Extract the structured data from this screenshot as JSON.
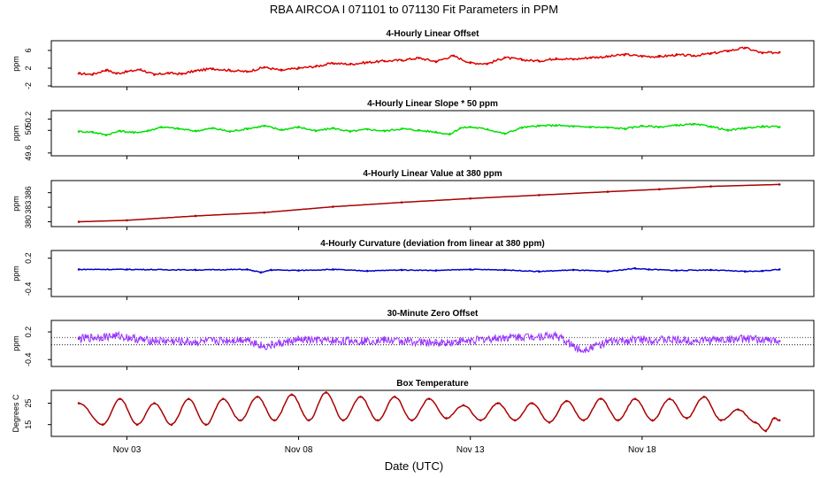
{
  "title": "RBA   AIRCOA I   071101 to 071130   Fit Parameters in PPM",
  "x_axis": {
    "label": "Date (UTC)",
    "range_days": [
      0.8,
      23.0
    ],
    "ticks": [
      {
        "day": 3,
        "label": "Nov 03"
      },
      {
        "day": 8,
        "label": "Nov 08"
      },
      {
        "day": 13,
        "label": "Nov 13"
      },
      {
        "day": 18,
        "label": "Nov 18"
      }
    ]
  },
  "chart_data": [
    {
      "type": "line",
      "title": "4-Hourly Linear Offset",
      "ylabel": "ppm",
      "ylim": [
        -2.2,
        8.2
      ],
      "yticks": [
        -2,
        2,
        6
      ],
      "ytick_labels": [
        "-2",
        "2",
        "6"
      ],
      "color": "#e00000",
      "x": [
        1.6,
        2.0,
        2.4,
        2.7,
        3.0,
        3.4,
        3.8,
        4.2,
        4.6,
        5.0,
        5.5,
        6.0,
        6.5,
        7.0,
        7.5,
        8.0,
        8.5,
        9.0,
        9.5,
        10.0,
        10.5,
        11.0,
        11.5,
        12.0,
        12.5,
        13.0,
        13.5,
        14.0,
        14.5,
        15.0,
        15.5,
        16.0,
        16.5,
        17.0,
        17.5,
        18.0,
        18.5,
        19.0,
        19.5,
        20.0,
        20.5,
        21.0,
        21.5,
        22.0
      ],
      "values": [
        0.8,
        0.6,
        1.6,
        0.8,
        1.2,
        1.7,
        0.5,
        0.9,
        0.7,
        1.4,
        1.9,
        1.5,
        1.2,
        2.2,
        1.5,
        2.0,
        2.4,
        3.1,
        2.9,
        3.3,
        3.6,
        3.8,
        4.3,
        3.5,
        4.8,
        3.2,
        3.0,
        4.4,
        3.9,
        3.6,
        4.2,
        4.0,
        4.4,
        4.6,
        5.1,
        4.7,
        4.6,
        5.0,
        4.8,
        5.3,
        5.9,
        6.6,
        5.4,
        5.6
      ]
    },
    {
      "type": "line",
      "title": "4-Hourly Linear Slope * 50 ppm",
      "ylabel": "ppm",
      "ylim": [
        49.55,
        50.35
      ],
      "yticks": [
        49.6,
        50.0,
        50.2
      ],
      "ytick_labels": [
        "49.6",
        "50",
        "50.2"
      ],
      "color": "#00e000",
      "x": [
        1.6,
        2.0,
        2.4,
        2.8,
        3.2,
        3.6,
        4.0,
        4.5,
        5.0,
        5.5,
        6.0,
        6.5,
        7.0,
        7.5,
        8.0,
        8.5,
        9.0,
        9.5,
        10.0,
        10.5,
        11.0,
        11.5,
        12.0,
        12.4,
        12.7,
        13.0,
        13.5,
        14.0,
        14.5,
        15.0,
        15.5,
        16.0,
        16.5,
        17.0,
        17.5,
        18.0,
        18.5,
        19.0,
        19.5,
        20.0,
        20.5,
        21.0,
        21.5,
        22.0
      ],
      "values": [
        49.98,
        49.97,
        49.92,
        49.99,
        49.96,
        49.99,
        50.06,
        50.03,
        49.99,
        50.04,
        49.98,
        50.03,
        50.08,
        50.01,
        50.06,
        49.99,
        50.04,
        49.98,
        50.02,
        49.99,
        50.03,
        50.0,
        49.97,
        49.93,
        50.04,
        50.06,
        50.02,
        49.94,
        50.05,
        50.08,
        50.09,
        50.07,
        50.06,
        50.05,
        50.03,
        50.08,
        50.06,
        50.09,
        50.11,
        50.07,
        50.0,
        50.04,
        50.07,
        50.06
      ]
    },
    {
      "type": "line",
      "title": "4-Hourly Linear Value at 380 ppm",
      "ylabel": "ppm",
      "ylim": [
        379.0,
        388.5
      ],
      "yticks": [
        380,
        383,
        386
      ],
      "ytick_labels": [
        "380",
        "383",
        "386"
      ],
      "color": "#aa0000",
      "x": [
        1.6,
        3.0,
        5.0,
        7.0,
        9.0,
        11.0,
        13.0,
        15.0,
        17.0,
        18.5,
        20.0,
        22.0
      ],
      "values": [
        380.0,
        380.3,
        381.2,
        381.9,
        383.1,
        384.0,
        384.8,
        385.5,
        386.2,
        386.7,
        387.3,
        387.7
      ]
    },
    {
      "type": "line",
      "title": "4-Hourly Curvature (deviation from linear at 380 ppm)",
      "ylabel": "ppm",
      "ylim": [
        -0.55,
        0.35
      ],
      "yticks": [
        -0.4,
        0.2
      ],
      "ytick_labels": [
        "-0.4",
        "0.2"
      ],
      "color": "#0000cc",
      "x": [
        1.6,
        3.0,
        5.0,
        6.5,
        6.9,
        7.2,
        8.0,
        9.0,
        10.0,
        11.0,
        12.0,
        13.0,
        14.0,
        15.0,
        16.0,
        17.0,
        17.8,
        18.2,
        19.0,
        20.0,
        21.0,
        21.5,
        22.0
      ],
      "values": [
        -0.02,
        -0.02,
        -0.03,
        -0.02,
        -0.08,
        -0.03,
        -0.04,
        -0.02,
        -0.05,
        -0.03,
        -0.04,
        -0.02,
        -0.03,
        -0.06,
        -0.03,
        -0.06,
        0.0,
        -0.02,
        -0.04,
        -0.03,
        -0.06,
        -0.05,
        -0.02
      ]
    },
    {
      "type": "line",
      "title": "30-Minute Zero Offset",
      "ylabel": "ppm",
      "ylim": [
        -0.55,
        0.45
      ],
      "yticks": [
        -0.4,
        0.2
      ],
      "ytick_labels": [
        "-0.4",
        "0.2"
      ],
      "reference_lines": [
        0.08,
        -0.08
      ],
      "color": "#9933ff",
      "x": [
        1.6,
        2.7,
        3.5,
        5.0,
        6.5,
        7.0,
        8.0,
        9.0,
        10.5,
        12.0,
        13.0,
        14.0,
        14.8,
        15.5,
        16.0,
        16.2,
        17.0,
        18.0,
        19.5,
        21.0,
        22.0
      ],
      "values": [
        0.05,
        0.12,
        0.02,
        -0.02,
        0.04,
        -0.12,
        0.03,
        0.0,
        0.02,
        -0.04,
        0.01,
        0.08,
        0.1,
        0.12,
        -0.1,
        -0.2,
        -0.02,
        0.04,
        0.01,
        0.05,
        0.0
      ]
    },
    {
      "type": "line",
      "title": "Box Temperature",
      "ylabel": "Degrees C",
      "ylim": [
        9.5,
        31.0
      ],
      "yticks": [
        15,
        25
      ],
      "ytick_labels": [
        "15",
        "25"
      ],
      "color": "#aa0000",
      "x": [
        1.6,
        2.3,
        2.8,
        3.3,
        3.8,
        4.3,
        4.8,
        5.3,
        5.8,
        6.3,
        6.8,
        7.3,
        7.8,
        8.3,
        8.8,
        9.3,
        9.8,
        10.3,
        10.8,
        11.3,
        11.8,
        12.3,
        12.8,
        13.3,
        13.8,
        14.3,
        14.8,
        15.3,
        15.8,
        16.3,
        16.8,
        17.3,
        17.8,
        18.3,
        18.8,
        19.3,
        19.8,
        20.3,
        20.8,
        21.3,
        21.6,
        21.85,
        22.0
      ],
      "values": [
        25,
        15,
        27,
        15,
        25,
        15,
        27,
        15,
        27,
        17,
        28,
        17,
        29,
        17,
        30,
        17,
        28,
        17,
        28,
        17,
        27,
        18,
        24,
        17,
        25,
        17,
        25,
        16,
        26,
        17,
        27,
        17,
        27,
        17,
        27,
        18,
        28,
        17,
        22,
        16,
        12,
        18,
        17
      ]
    }
  ]
}
